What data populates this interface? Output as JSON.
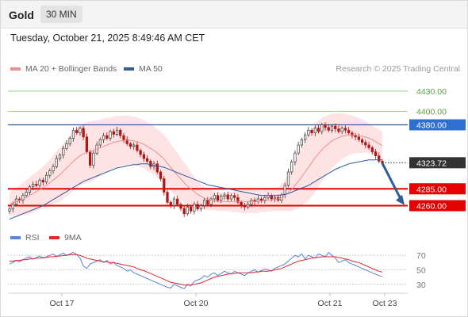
{
  "header": {
    "instrument": "Gold",
    "timeframe": "30 MIN"
  },
  "timestamp": "Tuesday, October 21, 2025 8:49:46 AM CET",
  "legend": {
    "items": [
      {
        "label": "MA 20 + Bollinger Bands",
        "color": "#f08e8e"
      },
      {
        "label": "MA 50",
        "color": "#2f5c9a"
      }
    ],
    "research": "Research © 2025 Trading Central"
  },
  "rsi_legend": {
    "items": [
      {
        "label": "RSI",
        "color": "#5b84d8"
      },
      {
        "label": "9MA",
        "color": "#e02828"
      }
    ]
  },
  "colors": {
    "up": "#3a3a3a",
    "down": "#b01515",
    "support": "#e50000",
    "resistance_green": "#9ccf8a",
    "pivot": "#2f5c9a",
    "arrow": "#2f5c9a",
    "band": "#fde0e0"
  },
  "chart_data": [
    {
      "type": "candlestick",
      "ylim": [
        4230,
        4450
      ],
      "x_ticks": [
        "Oct 17",
        "Oct 20",
        "Oct 21",
        "Oct 23"
      ],
      "current_price": "4323.72",
      "levels": [
        {
          "label": "4430.00",
          "value": 4430,
          "style": "green-line"
        },
        {
          "label": "4400.00",
          "value": 4400,
          "style": "green-line"
        },
        {
          "label": "4380.00",
          "value": 4380,
          "style": "pivot"
        },
        {
          "label": "4285.00",
          "value": 4285,
          "style": "support"
        },
        {
          "label": "4260.00",
          "value": 4260,
          "style": "support"
        }
      ],
      "forecast": {
        "from": 4323,
        "to": 4262,
        "direction": "down"
      },
      "closes": [
        4255,
        4262,
        4270,
        4268,
        4275,
        4280,
        4288,
        4292,
        4290,
        4298,
        4295,
        4305,
        4312,
        4318,
        4330,
        4335,
        4345,
        4352,
        4360,
        4372,
        4368,
        4375,
        4362,
        4340,
        4320,
        4338,
        4350,
        4358,
        4364,
        4360,
        4370,
        4366,
        4372,
        4364,
        4358,
        4352,
        4348,
        4350,
        4342,
        4336,
        4330,
        4326,
        4318,
        4322,
        4310,
        4300,
        4280,
        4265,
        4260,
        4270,
        4262,
        4256,
        4248,
        4258,
        4252,
        4262,
        4255,
        4260,
        4268,
        4262,
        4270,
        4275,
        4268,
        4274,
        4276,
        4270,
        4275,
        4272,
        4265,
        4260,
        4258,
        4262,
        4268,
        4266,
        4270,
        4268,
        4272,
        4275,
        4270,
        4272,
        4268,
        4276,
        4290,
        4310,
        4325,
        4338,
        4350,
        4358,
        4365,
        4372,
        4368,
        4375,
        4370,
        4380,
        4376,
        4372,
        4378,
        4374,
        4370,
        4375,
        4372,
        4368,
        4364,
        4362,
        4358,
        4354,
        4350,
        4346,
        4340,
        4334,
        4326,
        4323
      ],
      "ma20": [
        4262,
        4264,
        4266,
        4268,
        4270,
        4272,
        4275,
        4278,
        4281,
        4284,
        4287,
        4290,
        4294,
        4298,
        4302,
        4306,
        4311,
        4316,
        4321,
        4326,
        4330,
        4334,
        4337,
        4339,
        4340,
        4342,
        4344,
        4346,
        4348,
        4350,
        4352,
        4354,
        4355,
        4356,
        4357,
        4357,
        4357,
        4356,
        4355,
        4353,
        4351,
        4348,
        4345,
        4342,
        4338,
        4334,
        4329,
        4323,
        4317,
        4311,
        4305,
        4300,
        4294,
        4289,
        4285,
        4281,
        4277,
        4274,
        4271,
        4269,
        4268,
        4267,
        4266,
        4266,
        4266,
        4266,
        4266,
        4266,
        4266,
        4266,
        4266,
        4266,
        4266,
        4266,
        4266,
        4267,
        4267,
        4268,
        4268,
        4269,
        4270,
        4272,
        4275,
        4279,
        4284,
        4290,
        4296,
        4303,
        4310,
        4317,
        4324,
        4331,
        4337,
        4343,
        4348,
        4352,
        4356,
        4359,
        4361,
        4363,
        4364,
        4365,
        4365,
        4365,
        4364,
        4363,
        4362,
        4360,
        4358,
        4355,
        4352,
        4349
      ],
      "ma50": [
        4240,
        4242,
        4244,
        4246,
        4248,
        4250,
        4252,
        4254,
        4256,
        4258,
        4260,
        4263,
        4266,
        4269,
        4272,
        4275,
        4278,
        4281,
        4284,
        4287,
        4290,
        4293,
        4296,
        4298,
        4300,
        4302,
        4304,
        4306,
        4308,
        4310,
        4312,
        4314,
        4316,
        4317,
        4318,
        4319,
        4320,
        4321,
        4321,
        4322,
        4322,
        4322,
        4321,
        4320,
        4319,
        4318,
        4317,
        4315,
        4313,
        4311,
        4309,
        4307,
        4305,
        4303,
        4301,
        4299,
        4297,
        4295,
        4293,
        4291,
        4290,
        4289,
        4288,
        4287,
        4286,
        4285,
        4284,
        4283,
        4282,
        4281,
        4280,
        4279,
        4278,
        4277,
        4276,
        4275,
        4275,
        4275,
        4275,
        4275,
        4275,
        4276,
        4277,
        4278,
        4280,
        4282,
        4284,
        4286,
        4288,
        4290,
        4293,
        4296,
        4299,
        4302,
        4305,
        4308,
        4311,
        4314,
        4316,
        4318,
        4320,
        4322,
        4323,
        4324,
        4325,
        4326,
        4327,
        4328,
        4328,
        4328,
        4328,
        4328
      ],
      "bb_upper": [
        4280,
        4283,
        4286,
        4290,
        4294,
        4298,
        4302,
        4306,
        4310,
        4314,
        4318,
        4323,
        4328,
        4334,
        4340,
        4346,
        4352,
        4358,
        4364,
        4370,
        4375,
        4379,
        4382,
        4384,
        4385,
        4386,
        4387,
        4388,
        4389,
        4390,
        4391,
        4392,
        4393,
        4393,
        4394,
        4394,
        4393,
        4392,
        4391,
        4389,
        4387,
        4384,
        4381,
        4378,
        4374,
        4370,
        4365,
        4359,
        4352,
        4345,
        4338,
        4331,
        4324,
        4317,
        4310,
        4303,
        4297,
        4292,
        4288,
        4285,
        4283,
        4281,
        4280,
        4280,
        4280,
        4280,
        4281,
        4282,
        4282,
        4283,
        4283,
        4283,
        4283,
        4283,
        4283,
        4283,
        4284,
        4284,
        4285,
        4286,
        4288,
        4292,
        4298,
        4306,
        4316,
        4326,
        4336,
        4346,
        4356,
        4366,
        4374,
        4381,
        4386,
        4390,
        4393,
        4395,
        4396,
        4397,
        4397,
        4397,
        4396,
        4395,
        4394,
        4392,
        4390,
        4388,
        4385,
        4382,
        4379,
        4376,
        4373,
        4370
      ],
      "bb_lower": [
        4244,
        4245,
        4246,
        4246,
        4246,
        4246,
        4248,
        4250,
        4252,
        4254,
        4256,
        4257,
        4260,
        4262,
        4264,
        4266,
        4270,
        4274,
        4278,
        4282,
        4285,
        4289,
        4292,
        4294,
        4295,
        4298,
        4301,
        4304,
        4307,
        4310,
        4313,
        4316,
        4317,
        4319,
        4320,
        4320,
        4321,
        4320,
        4319,
        4317,
        4315,
        4312,
        4309,
        4306,
        4302,
        4298,
        4293,
        4287,
        4282,
        4277,
        4272,
        4269,
        4264,
        4261,
        4260,
        4259,
        4257,
        4256,
        4254,
        4253,
        4253,
        4253,
        4252,
        4252,
        4252,
        4252,
        4251,
        4250,
        4250,
        4249,
        4249,
        4249,
        4249,
        4249,
        4249,
        4251,
        4250,
        4252,
        4251,
        4252,
        4252,
        4252,
        4252,
        4252,
        4252,
        4254,
        4256,
        4260,
        4264,
        4268,
        4274,
        4281,
        4288,
        4296,
        4303,
        4309,
        4316,
        4321,
        4325,
        4329,
        4332,
        4335,
        4336,
        4338,
        4338,
        4338,
        4339,
        4338,
        4337,
        4334,
        4331,
        4328
      ]
    },
    {
      "type": "line",
      "ylim": [
        20,
        80
      ],
      "levels": [
        {
          "label": "70",
          "value": 70
        },
        {
          "label": "50",
          "value": 50
        },
        {
          "label": "30",
          "value": 30
        }
      ],
      "rsi": [
        58,
        60,
        63,
        61,
        64,
        66,
        68,
        65,
        67,
        69,
        66,
        68,
        70,
        72,
        68,
        71,
        73,
        70,
        72,
        74,
        71,
        66,
        55,
        52,
        58,
        60,
        62,
        64,
        60,
        63,
        58,
        60,
        56,
        54,
        52,
        48,
        50,
        46,
        44,
        42,
        40,
        38,
        36,
        34,
        32,
        30,
        28,
        26,
        25,
        30,
        28,
        26,
        24,
        30,
        28,
        34,
        36,
        38,
        42,
        40,
        44,
        46,
        42,
        45,
        48,
        46,
        44,
        48,
        46,
        44,
        42,
        46,
        48,
        50,
        47,
        49,
        51,
        50,
        48,
        52,
        54,
        56,
        58,
        62,
        66,
        70,
        68,
        72,
        65,
        70,
        68,
        66,
        72,
        70,
        68,
        74,
        70,
        66,
        60,
        62,
        64,
        60,
        58,
        56,
        54,
        52,
        50,
        48,
        46,
        44,
        42,
        41
      ],
      "ma9": [
        62,
        62,
        63,
        63,
        64,
        64,
        65,
        65,
        66,
        66,
        67,
        67,
        68,
        68,
        69,
        69,
        70,
        70,
        71,
        71,
        71,
        70,
        68,
        66,
        65,
        64,
        63,
        62,
        61,
        61,
        60,
        60,
        59,
        58,
        57,
        56,
        55,
        54,
        52,
        50,
        49,
        47,
        45,
        43,
        41,
        39,
        37,
        35,
        33,
        32,
        31,
        30,
        29,
        29,
        29,
        30,
        31,
        32,
        34,
        36,
        38,
        40,
        41,
        42,
        43,
        44,
        45,
        45,
        46,
        46,
        46,
        46,
        46,
        47,
        47,
        48,
        48,
        48,
        49,
        50,
        51,
        52,
        54,
        56,
        58,
        60,
        62,
        63,
        64,
        65,
        66,
        67,
        67,
        68,
        68,
        68,
        68,
        68,
        67,
        66,
        65,
        64,
        62,
        61,
        60,
        58,
        56,
        54,
        52,
        50,
        48,
        47
      ]
    }
  ]
}
